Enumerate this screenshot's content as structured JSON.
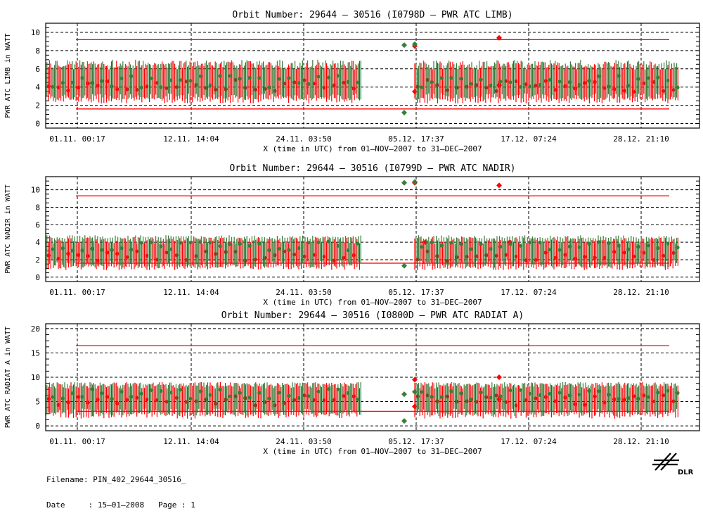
{
  "chart_data": [
    {
      "type": "line",
      "title": "Orbit Number: 29644 – 30516 (I0798D – PWR ATC LIMB)",
      "xlabel": "X (time in UTC) from 01–NOV–2007 to 31–DEC–2007",
      "ylabel": "PWR ATC LIMB in WATT",
      "xlim": [
        "2007-11-01",
        "2008-01-02"
      ],
      "ylim": [
        -0.5,
        11
      ],
      "yticks": [
        0,
        2,
        4,
        6,
        8,
        10
      ],
      "xtick_labels": [
        "01.11. 00:17",
        "12.11. 14:04",
        "24.11. 03:50",
        "05.12. 17:37",
        "17.12. 07:24",
        "28.12. 21:10"
      ],
      "grid": true,
      "limit_lines": [
        {
          "color": "#ff0000",
          "value": 9.2
        },
        {
          "color": "#ff0000",
          "value": 1.6
        }
      ],
      "series": [
        {
          "color": "#ff0000",
          "band": [
            2.2,
            6.9
          ],
          "mean": 4.1,
          "segments": [
            [
              "2007-11-01",
              "2007-12-01"
            ],
            [
              "2007-12-06",
              "2007-12-31"
            ]
          ],
          "points": [
            [
              "2007-12-06",
              8.5
            ],
            [
              "2007-12-06",
              3.5
            ],
            [
              "2007-12-14",
              9.4
            ],
            [
              "2007-12-14",
              4.2
            ]
          ]
        },
        {
          "color": "#3a7d3a",
          "band": [
            2.6,
            7.0
          ],
          "mean": 4.6,
          "segments": [
            [
              "2007-11-01",
              "2007-12-01"
            ],
            [
              "2007-12-06",
              "2007-12-31"
            ]
          ],
          "points": [
            [
              "2007-12-05",
              1.2
            ],
            [
              "2007-12-05",
              8.6
            ],
            [
              "2007-12-06",
              8.7
            ]
          ]
        }
      ]
    },
    {
      "type": "line",
      "title": "Orbit Number: 29644 – 30516 (I0799D – PWR ATC NADIR)",
      "xlabel": "X (time in UTC) from 01–NOV–2007 to 31–DEC–2007",
      "ylabel": "PWR ATC NADIR in WATT",
      "xlim": [
        "2007-11-01",
        "2008-01-02"
      ],
      "ylim": [
        -0.5,
        11.5
      ],
      "yticks": [
        0,
        2,
        4,
        6,
        8,
        10
      ],
      "xtick_labels": [
        "01.11. 00:17",
        "12.11. 14:04",
        "24.11. 03:50",
        "05.12. 17:37",
        "17.12. 07:24",
        "28.12. 21:10"
      ],
      "grid": true,
      "limit_lines": [
        {
          "color": "#ff0000",
          "value": 9.3
        },
        {
          "color": "#ff0000",
          "value": 1.6
        }
      ],
      "series": [
        {
          "color": "#ff0000",
          "band": [
            0.8,
            4.6
          ],
          "mean": 2.4,
          "segments": [
            [
              "2007-11-01",
              "2007-12-01"
            ],
            [
              "2007-12-06",
              "2007-12-31"
            ]
          ],
          "points": [
            [
              "2007-12-06",
              10.8
            ],
            [
              "2007-12-07",
              4.0
            ],
            [
              "2007-12-14",
              10.5
            ],
            [
              "2007-12-15",
              4.0
            ]
          ]
        },
        {
          "color": "#3a7d3a",
          "band": [
            1.0,
            4.8
          ],
          "mean": 3.6,
          "segments": [
            [
              "2007-11-01",
              "2007-12-01"
            ],
            [
              "2007-12-06",
              "2007-12-31"
            ]
          ],
          "points": [
            [
              "2007-12-05",
              1.3
            ],
            [
              "2007-12-05",
              10.8
            ],
            [
              "2007-12-06",
              10.9
            ]
          ]
        }
      ]
    },
    {
      "type": "line",
      "title": "Orbit Number: 29644 – 30516 (I0800D – PWR ATC RADIAT A)",
      "xlabel": "X (time in UTC) from 01–NOV–2007 to 31–DEC–2007",
      "ylabel": "PWR ATC RADIAT A in WATT",
      "xlim": [
        "2007-11-01",
        "2008-01-02"
      ],
      "ylim": [
        -1,
        21
      ],
      "yticks": [
        0,
        5,
        10,
        15,
        20
      ],
      "xtick_labels": [
        "01.11. 00:17",
        "12.11. 14:04",
        "24.11. 03:50",
        "05.12. 17:37",
        "17.12. 07:24",
        "28.12. 21:10"
      ],
      "grid": true,
      "limit_lines": [
        {
          "color": "#ff0000",
          "value": 16.5
        },
        {
          "color": "#ff0000",
          "value": 3.0
        }
      ],
      "series": [
        {
          "color": "#ff0000",
          "band": [
            1.5,
            9.0
          ],
          "mean": 5.2,
          "segments": [
            [
              "2007-11-01",
              "2007-12-01"
            ],
            [
              "2007-12-06",
              "2007-12-31"
            ]
          ],
          "points": [
            [
              "2007-12-06",
              9.5
            ],
            [
              "2007-12-06",
              4.0
            ],
            [
              "2007-12-14",
              10.0
            ],
            [
              "2007-12-14",
              5.5
            ]
          ]
        },
        {
          "color": "#3a7d3a",
          "band": [
            2.0,
            9.0
          ],
          "mean": 6.5,
          "segments": [
            [
              "2007-11-01",
              "2007-12-01"
            ],
            [
              "2007-12-06",
              "2007-12-31"
            ]
          ],
          "points": [
            [
              "2007-12-05",
              1.0
            ],
            [
              "2007-12-05",
              6.5
            ],
            [
              "2007-12-06",
              7.0
            ]
          ]
        }
      ]
    }
  ],
  "footer": {
    "filename_line": "Filename: PIN_402_29644_30516_",
    "date_line": "Date     : 15–01–2008   Page : 1"
  },
  "logo": {
    "icon": "dlr-logo",
    "text": "DLR"
  }
}
